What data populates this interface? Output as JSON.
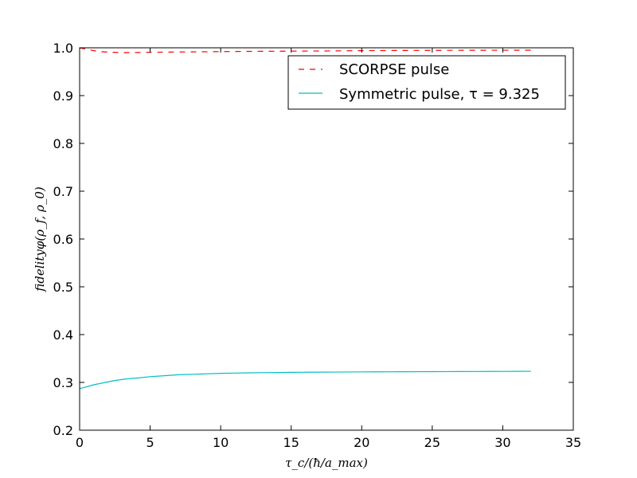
{
  "chart_data": {
    "type": "line",
    "title": "",
    "xlabel": "τ_c/(ħ/a_max)",
    "ylabel": "fidelityφ(ρ_f, ρ_0)",
    "xlim": [
      0,
      35
    ],
    "ylim": [
      0.2,
      1.0
    ],
    "xticks": [
      0,
      5,
      10,
      15,
      20,
      25,
      30,
      35
    ],
    "yticks": [
      0.2,
      0.3,
      0.4,
      0.5,
      0.6,
      0.7,
      0.8,
      0.9,
      1.0
    ],
    "xtick_labels": [
      "0",
      "5",
      "10",
      "15",
      "20",
      "25",
      "30",
      "35"
    ],
    "ytick_labels": [
      "0.2",
      "0.3",
      "0.4",
      "0.5",
      "0.6",
      "0.7",
      "0.8",
      "0.9",
      "1.0"
    ],
    "grid": false,
    "legend_position": "top-right",
    "series": [
      {
        "name": "SCORPSE pulse",
        "color": "#ff0000",
        "style": "dashed",
        "x": [
          0,
          0.5,
          1,
          1.5,
          2,
          3,
          4,
          5,
          6,
          8,
          10,
          12,
          15,
          18,
          20,
          22,
          25,
          28,
          30,
          32
        ],
        "y": [
          1.0,
          0.997,
          0.994,
          0.992,
          0.991,
          0.99,
          0.99,
          0.9905,
          0.991,
          0.9915,
          0.992,
          0.9925,
          0.993,
          0.9935,
          0.994,
          0.9943,
          0.9946,
          0.9948,
          0.9949,
          0.995
        ]
      },
      {
        "name": "Symmetric pulse, τ = 9.325",
        "color": "#00bfbf",
        "style": "solid",
        "x": [
          0,
          0.5,
          1,
          1.5,
          2,
          2.5,
          3,
          3.5,
          4,
          5,
          6,
          7,
          8,
          9,
          10,
          11,
          12,
          13,
          14,
          15,
          16,
          17,
          18,
          19,
          20,
          21,
          22,
          23,
          24,
          25,
          26,
          27,
          28,
          29,
          30,
          31,
          32
        ],
        "y": [
          0.287,
          0.291,
          0.295,
          0.298,
          0.301,
          0.304,
          0.306,
          0.308,
          0.309,
          0.312,
          0.314,
          0.316,
          0.317,
          0.318,
          0.319,
          0.3195,
          0.32,
          0.3203,
          0.3206,
          0.321,
          0.3212,
          0.3214,
          0.3216,
          0.3218,
          0.322,
          0.3221,
          0.3222,
          0.3223,
          0.3224,
          0.3225,
          0.3226,
          0.3227,
          0.3228,
          0.3229,
          0.323,
          0.3231,
          0.3232
        ]
      }
    ]
  },
  "legend": {
    "entries": [
      "SCORPSE pulse",
      "Symmetric pulse, τ = 9.325"
    ]
  }
}
